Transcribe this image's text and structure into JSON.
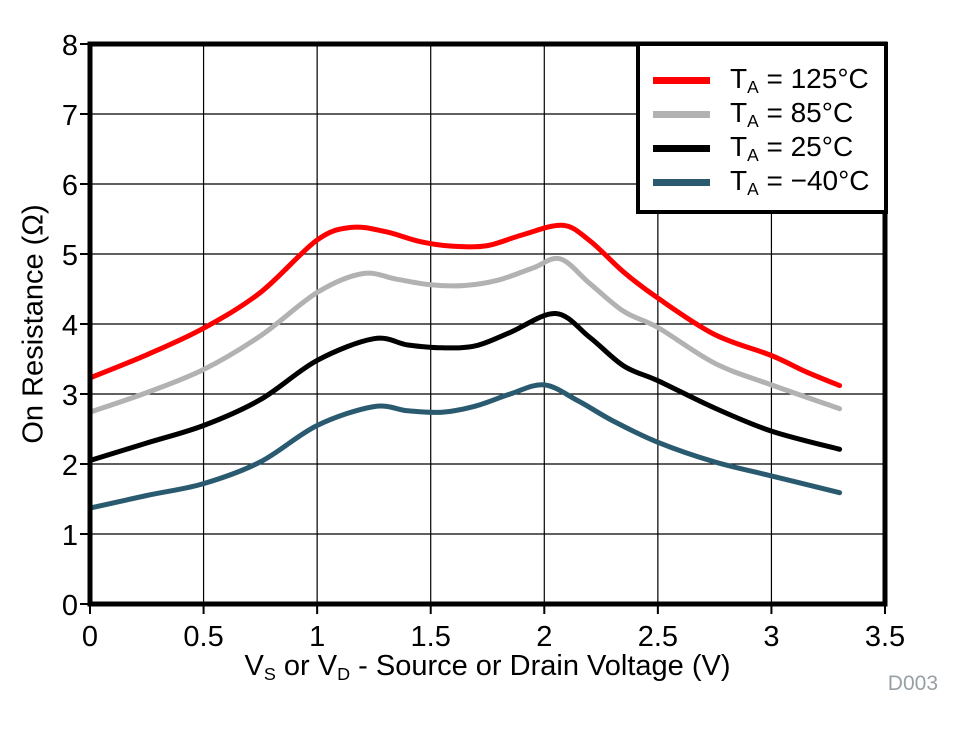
{
  "chart_data": {
    "type": "line",
    "title": "",
    "ylabel": "On Resistance (Ω)",
    "xlabel_parts": {
      "p1": "V",
      "s1": "S",
      "p2": " or V",
      "s2": "D",
      "p3": " - Source or Drain Voltage (V)"
    },
    "x_axis": {
      "min": 0,
      "max": 3.5,
      "ticks": [
        0,
        0.5,
        1,
        1.5,
        2,
        2.5,
        3,
        3.5
      ],
      "tick_labels": [
        "0",
        "0.5",
        "1",
        "1.5",
        "2",
        "2.5",
        "3",
        "3.5"
      ],
      "grid": true
    },
    "y_axis": {
      "min": 0,
      "max": 8,
      "ticks": [
        0,
        1,
        2,
        3,
        4,
        5,
        6,
        7,
        8
      ],
      "tick_labels": [
        "0",
        "1",
        "2",
        "3",
        "4",
        "5",
        "6",
        "7",
        "8"
      ],
      "grid": true
    },
    "series": [
      {
        "name": "TA = 125°C",
        "color": "#ff0000",
        "points": [
          [
            0,
            3.23
          ],
          [
            0.25,
            3.56
          ],
          [
            0.5,
            3.94
          ],
          [
            0.75,
            4.45
          ],
          [
            1.0,
            5.2
          ],
          [
            1.15,
            5.38
          ],
          [
            1.3,
            5.32
          ],
          [
            1.45,
            5.18
          ],
          [
            1.6,
            5.11
          ],
          [
            1.75,
            5.12
          ],
          [
            1.9,
            5.27
          ],
          [
            2.08,
            5.41
          ],
          [
            2.2,
            5.19
          ],
          [
            2.35,
            4.74
          ],
          [
            2.5,
            4.37
          ],
          [
            2.75,
            3.85
          ],
          [
            3.0,
            3.55
          ],
          [
            3.15,
            3.32
          ],
          [
            3.3,
            3.12
          ]
        ]
      },
      {
        "name": "TA = 85°C",
        "color": "#b2b2b2",
        "points": [
          [
            0,
            2.74
          ],
          [
            0.25,
            3.02
          ],
          [
            0.5,
            3.35
          ],
          [
            0.75,
            3.83
          ],
          [
            1.0,
            4.45
          ],
          [
            1.2,
            4.72
          ],
          [
            1.35,
            4.64
          ],
          [
            1.5,
            4.56
          ],
          [
            1.65,
            4.55
          ],
          [
            1.8,
            4.63
          ],
          [
            1.95,
            4.8
          ],
          [
            2.07,
            4.93
          ],
          [
            2.2,
            4.58
          ],
          [
            2.35,
            4.18
          ],
          [
            2.5,
            3.95
          ],
          [
            2.75,
            3.44
          ],
          [
            3.0,
            3.13
          ],
          [
            3.3,
            2.79
          ]
        ]
      },
      {
        "name": "TA = 25°C",
        "color": "#000000",
        "points": [
          [
            0,
            2.05
          ],
          [
            0.25,
            2.3
          ],
          [
            0.5,
            2.55
          ],
          [
            0.75,
            2.92
          ],
          [
            1.0,
            3.48
          ],
          [
            1.25,
            3.79
          ],
          [
            1.4,
            3.7
          ],
          [
            1.55,
            3.66
          ],
          [
            1.7,
            3.69
          ],
          [
            1.85,
            3.88
          ],
          [
            2.05,
            4.15
          ],
          [
            2.2,
            3.81
          ],
          [
            2.35,
            3.4
          ],
          [
            2.5,
            3.19
          ],
          [
            2.75,
            2.8
          ],
          [
            3.0,
            2.47
          ],
          [
            3.3,
            2.21
          ]
        ]
      },
      {
        "name": "TA = −40°C",
        "color": "#2a5a70",
        "points": [
          [
            0,
            1.37
          ],
          [
            0.25,
            1.55
          ],
          [
            0.5,
            1.72
          ],
          [
            0.75,
            2.03
          ],
          [
            1.0,
            2.55
          ],
          [
            1.25,
            2.82
          ],
          [
            1.4,
            2.76
          ],
          [
            1.55,
            2.74
          ],
          [
            1.7,
            2.83
          ],
          [
            1.85,
            3.0
          ],
          [
            2.0,
            3.13
          ],
          [
            2.15,
            2.9
          ],
          [
            2.3,
            2.62
          ],
          [
            2.5,
            2.31
          ],
          [
            2.75,
            2.03
          ],
          [
            3.0,
            1.83
          ],
          [
            3.3,
            1.59
          ]
        ]
      }
    ],
    "legend": {
      "position": "top-right",
      "items": [
        {
          "t": "T",
          "sub": "A",
          "rest": " = 125°C",
          "color": "#ff0000"
        },
        {
          "t": "T",
          "sub": "A",
          "rest": " = 85°C",
          "color": "#b2b2b2"
        },
        {
          "t": "T",
          "sub": "A",
          "rest": " = 25°C",
          "color": "#000000"
        },
        {
          "t": "T",
          "sub": "A",
          "rest": " = −40°C",
          "color": "#2a5a70"
        }
      ]
    },
    "watermark": {
      "text": "D003",
      "color": "#98a0a6"
    }
  }
}
